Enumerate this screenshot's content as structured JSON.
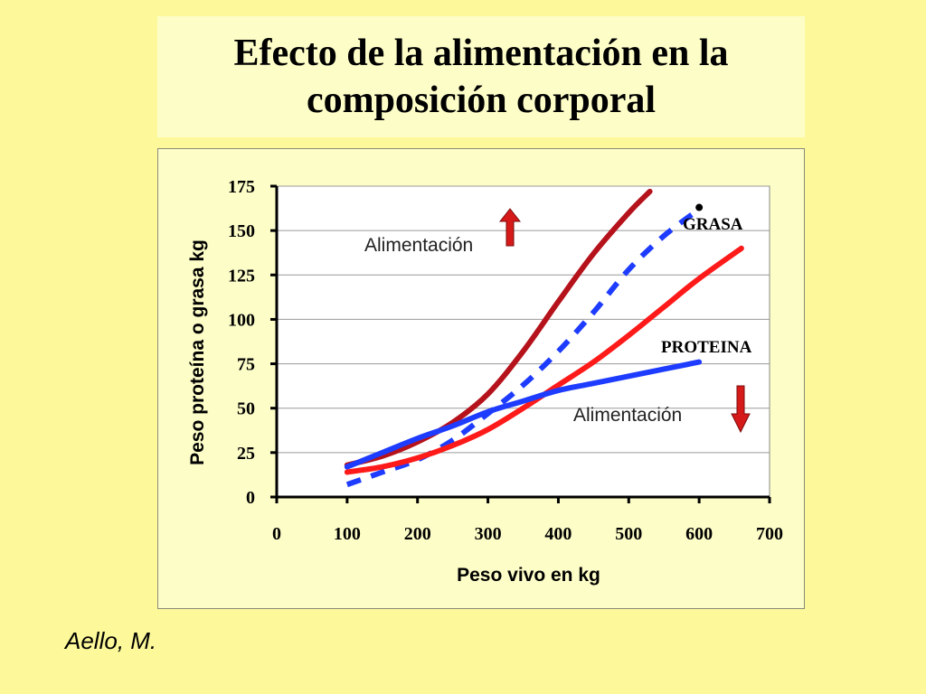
{
  "title": "Efecto de la alimentación en la composición corporal",
  "credit": "Aello, M.",
  "chart_data": {
    "type": "line",
    "xlabel": "Peso vivo en kg",
    "ylabel": "Peso proteína o grasa kg",
    "xlim": [
      0,
      700
    ],
    "ylim": [
      0,
      175
    ],
    "xticks": [
      "0",
      "100",
      "200",
      "300",
      "400",
      "500",
      "600",
      "700"
    ],
    "yticks": [
      "0",
      "25",
      "50",
      "75",
      "100",
      "125",
      "150",
      "175"
    ],
    "grid": "horizontal",
    "series": [
      {
        "color": "#b5121b",
        "style": "solid",
        "points": [
          [
            100,
            18
          ],
          [
            150,
            23
          ],
          [
            200,
            31
          ],
          [
            250,
            42
          ],
          [
            300,
            58
          ],
          [
            350,
            82
          ],
          [
            400,
            110
          ],
          [
            450,
            137
          ],
          [
            500,
            160
          ],
          [
            530,
            172
          ]
        ]
      },
      {
        "name": "GRASA",
        "color": "#1e3cff",
        "style": "dashed",
        "points": [
          [
            100,
            7
          ],
          [
            150,
            14
          ],
          [
            200,
            21
          ],
          [
            250,
            32
          ],
          [
            300,
            47
          ],
          [
            350,
            63
          ],
          [
            400,
            82
          ],
          [
            450,
            104
          ],
          [
            500,
            128
          ],
          [
            550,
            147
          ],
          [
            600,
            162
          ]
        ]
      },
      {
        "color": "#ff1a1a",
        "style": "solid",
        "points": [
          [
            100,
            14
          ],
          [
            150,
            17
          ],
          [
            200,
            22
          ],
          [
            250,
            29
          ],
          [
            300,
            38
          ],
          [
            350,
            50
          ],
          [
            400,
            63
          ],
          [
            450,
            76
          ],
          [
            500,
            91
          ],
          [
            550,
            107
          ],
          [
            600,
            123
          ],
          [
            660,
            140
          ]
        ]
      },
      {
        "name": "PROTEINA",
        "color": "#1e3cff",
        "style": "solid",
        "points": [
          [
            100,
            17
          ],
          [
            150,
            25
          ],
          [
            200,
            33
          ],
          [
            250,
            40
          ],
          [
            300,
            48
          ],
          [
            350,
            54
          ],
          [
            400,
            60
          ],
          [
            450,
            64
          ],
          [
            500,
            68
          ],
          [
            550,
            72
          ],
          [
            600,
            76
          ]
        ]
      }
    ],
    "annotations": [
      {
        "text": "Alimentación",
        "arrow": "up",
        "arrow_color": "#d61a1a"
      },
      {
        "text": "Alimentación",
        "arrow": "down",
        "arrow_color": "#d61a1a"
      }
    ],
    "series_labels": [
      {
        "text": "GRASA"
      },
      {
        "text": "PROTEINA"
      }
    ]
  }
}
